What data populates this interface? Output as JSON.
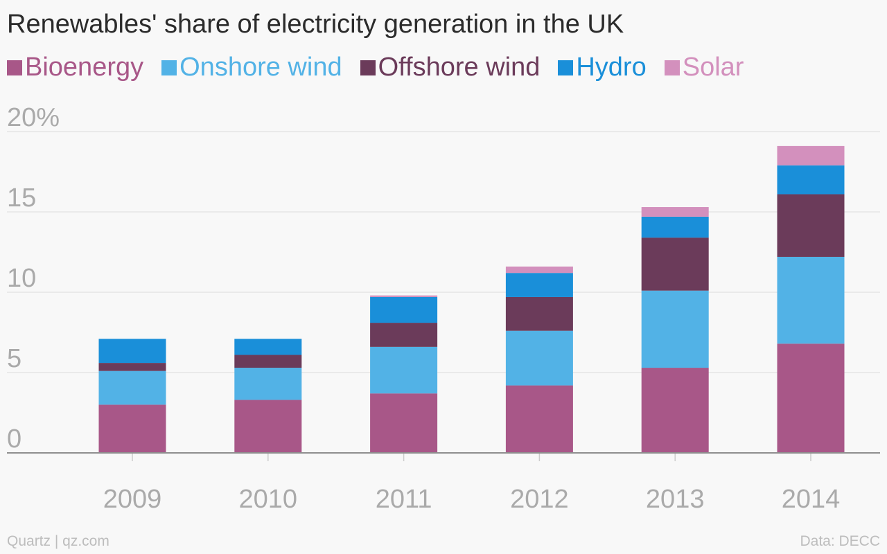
{
  "title": "Renewables' share of electricity generation in the UK",
  "footer": {
    "source_left": "Quartz | qz.com",
    "source_right": "Data: DECC"
  },
  "chart_data": {
    "type": "bar",
    "stacked": true,
    "categories": [
      "2009",
      "2010",
      "2011",
      "2012",
      "2013",
      "2014"
    ],
    "series": [
      {
        "name": "Bioenergy",
        "color": "#a85788",
        "values": [
          3.0,
          3.3,
          3.7,
          4.2,
          5.3,
          6.8
        ]
      },
      {
        "name": "Onshore wind",
        "color": "#52b2e6",
        "values": [
          2.1,
          2.0,
          2.9,
          3.4,
          4.8,
          5.4
        ]
      },
      {
        "name": "Offshore wind",
        "color": "#6b3b5a",
        "values": [
          0.5,
          0.8,
          1.5,
          2.1,
          3.3,
          3.9
        ]
      },
      {
        "name": "Hydro",
        "color": "#1a8fd9",
        "values": [
          1.5,
          1.0,
          1.6,
          1.5,
          1.3,
          1.8
        ]
      },
      {
        "name": "Solar",
        "color": "#d390bd",
        "values": [
          0.0,
          0.0,
          0.1,
          0.4,
          0.6,
          1.2
        ]
      }
    ],
    "y_ticks": [
      "0",
      "5",
      "10",
      "15",
      "20%"
    ],
    "y_tick_values": [
      0,
      5,
      10,
      15,
      20
    ],
    "ylim": [
      0,
      20
    ],
    "grid": true,
    "legend_position": "top-left"
  }
}
